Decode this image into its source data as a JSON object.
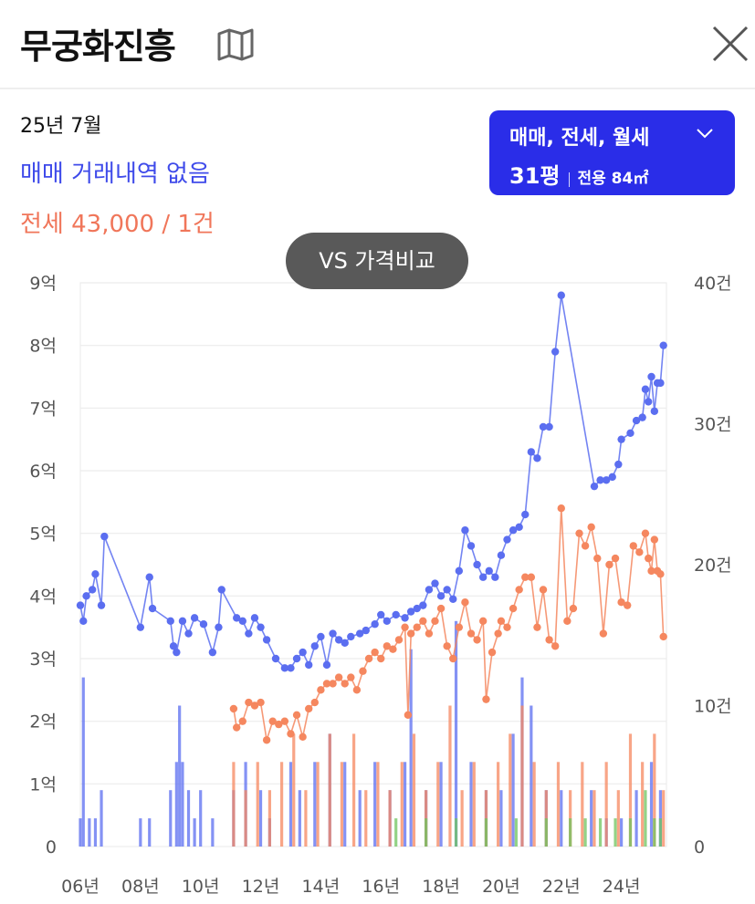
{
  "header": {
    "title": "무궁화진흥"
  },
  "summary": {
    "date": "25년 7월",
    "sale_text": "매매 거래내역 없음",
    "jeonse_text": "전세 43,000 / 1건"
  },
  "filter": {
    "types_label": "매매, 전세, 월세",
    "pyeong_label": "31평",
    "area_label": "전용 84㎡"
  },
  "compare_button": {
    "label": "VS 가격비교"
  },
  "colors": {
    "sale": "#5b6ef0",
    "jeonse": "#f5875f",
    "monthly": "#6fc45e",
    "accent": "#2a2de8"
  },
  "icons": {
    "map": "map-icon",
    "close": "close-icon",
    "dropdown": "chevron-down-icon"
  },
  "chart_data": {
    "type": "line",
    "x_range": [
      2006,
      2025.5
    ],
    "x_ticks": [
      "06년",
      "08년",
      "10년",
      "12년",
      "14년",
      "16년",
      "18년",
      "20년",
      "22년",
      "24년"
    ],
    "x_tick_years": [
      2006,
      2008,
      2010,
      2012,
      2014,
      2016,
      2018,
      2020,
      2022,
      2024
    ],
    "y_left": {
      "ticks": [
        "0",
        "1억",
        "2억",
        "3억",
        "4억",
        "5억",
        "6억",
        "7억",
        "8억",
        "9억"
      ],
      "range": [
        0,
        9
      ]
    },
    "y_right": {
      "ticks": [
        "0",
        "10건",
        "20건",
        "30건",
        "40건"
      ],
      "range": [
        0,
        40
      ]
    },
    "grid": true,
    "series": [
      {
        "name": "매매",
        "color": "#5b6ef0",
        "points": [
          [
            2006.0,
            3.85
          ],
          [
            2006.1,
            3.6
          ],
          [
            2006.2,
            4.0
          ],
          [
            2006.4,
            4.1
          ],
          [
            2006.5,
            4.35
          ],
          [
            2006.7,
            3.85
          ],
          [
            2006.8,
            4.95
          ],
          [
            2008.0,
            3.5
          ],
          [
            2008.3,
            4.3
          ],
          [
            2008.4,
            3.8
          ],
          [
            2009.0,
            3.6
          ],
          [
            2009.1,
            3.2
          ],
          [
            2009.2,
            3.1
          ],
          [
            2009.4,
            3.6
          ],
          [
            2009.6,
            3.4
          ],
          [
            2009.8,
            3.65
          ],
          [
            2010.1,
            3.55
          ],
          [
            2010.4,
            3.1
          ],
          [
            2010.6,
            3.5
          ],
          [
            2010.7,
            4.1
          ],
          [
            2011.2,
            3.65
          ],
          [
            2011.4,
            3.6
          ],
          [
            2011.6,
            3.4
          ],
          [
            2011.8,
            3.65
          ],
          [
            2012.0,
            3.5
          ],
          [
            2012.2,
            3.3
          ],
          [
            2012.5,
            3.0
          ],
          [
            2012.8,
            2.85
          ],
          [
            2013.0,
            2.85
          ],
          [
            2013.2,
            3.0
          ],
          [
            2013.4,
            3.1
          ],
          [
            2013.6,
            2.9
          ],
          [
            2013.8,
            3.2
          ],
          [
            2014.0,
            3.35
          ],
          [
            2014.2,
            2.9
          ],
          [
            2014.4,
            3.4
          ],
          [
            2014.6,
            3.3
          ],
          [
            2014.8,
            3.25
          ],
          [
            2015.0,
            3.35
          ],
          [
            2015.3,
            3.4
          ],
          [
            2015.5,
            3.45
          ],
          [
            2015.8,
            3.55
          ],
          [
            2016.0,
            3.7
          ],
          [
            2016.2,
            3.6
          ],
          [
            2016.5,
            3.7
          ],
          [
            2016.8,
            3.65
          ],
          [
            2017.0,
            3.75
          ],
          [
            2017.2,
            3.8
          ],
          [
            2017.4,
            3.85
          ],
          [
            2017.6,
            4.1
          ],
          [
            2017.8,
            4.2
          ],
          [
            2018.0,
            4.0
          ],
          [
            2018.2,
            4.1
          ],
          [
            2018.4,
            3.95
          ],
          [
            2018.6,
            4.4
          ],
          [
            2018.8,
            5.05
          ],
          [
            2019.0,
            4.8
          ],
          [
            2019.2,
            4.5
          ],
          [
            2019.4,
            4.3
          ],
          [
            2019.6,
            4.4
          ],
          [
            2019.8,
            4.3
          ],
          [
            2020.0,
            4.65
          ],
          [
            2020.2,
            4.9
          ],
          [
            2020.4,
            5.05
          ],
          [
            2020.6,
            5.1
          ],
          [
            2020.8,
            5.3
          ],
          [
            2021.0,
            6.3
          ],
          [
            2021.2,
            6.2
          ],
          [
            2021.4,
            6.7
          ],
          [
            2021.6,
            6.7
          ],
          [
            2021.8,
            7.9
          ],
          [
            2022.0,
            8.8
          ],
          [
            2023.1,
            5.75
          ],
          [
            2023.3,
            5.85
          ],
          [
            2023.5,
            5.85
          ],
          [
            2023.7,
            5.9
          ],
          [
            2023.9,
            6.1
          ],
          [
            2024.0,
            6.5
          ],
          [
            2024.3,
            6.6
          ],
          [
            2024.5,
            6.8
          ],
          [
            2024.7,
            6.85
          ],
          [
            2024.8,
            7.3
          ],
          [
            2024.9,
            7.1
          ],
          [
            2025.0,
            7.5
          ],
          [
            2025.1,
            6.95
          ],
          [
            2025.2,
            7.4
          ],
          [
            2025.3,
            7.4
          ],
          [
            2025.4,
            8.0
          ]
        ]
      },
      {
        "name": "전세",
        "color": "#f5875f",
        "points": [
          [
            2011.1,
            2.2
          ],
          [
            2011.2,
            1.9
          ],
          [
            2011.4,
            2.0
          ],
          [
            2011.6,
            2.3
          ],
          [
            2011.8,
            2.25
          ],
          [
            2012.0,
            2.3
          ],
          [
            2012.2,
            1.7
          ],
          [
            2012.4,
            2.0
          ],
          [
            2012.6,
            1.95
          ],
          [
            2012.8,
            2.0
          ],
          [
            2013.0,
            1.8
          ],
          [
            2013.2,
            2.1
          ],
          [
            2013.4,
            1.75
          ],
          [
            2013.6,
            2.2
          ],
          [
            2013.8,
            2.3
          ],
          [
            2014.0,
            2.5
          ],
          [
            2014.2,
            2.6
          ],
          [
            2014.4,
            2.6
          ],
          [
            2014.6,
            2.7
          ],
          [
            2014.8,
            2.6
          ],
          [
            2015.0,
            2.7
          ],
          [
            2015.2,
            2.5
          ],
          [
            2015.4,
            2.8
          ],
          [
            2015.6,
            3.0
          ],
          [
            2015.8,
            3.1
          ],
          [
            2016.0,
            3.0
          ],
          [
            2016.2,
            3.2
          ],
          [
            2016.4,
            3.15
          ],
          [
            2016.6,
            3.3
          ],
          [
            2016.8,
            3.5
          ],
          [
            2016.9,
            2.1
          ],
          [
            2017.0,
            3.4
          ],
          [
            2017.2,
            3.5
          ],
          [
            2017.4,
            3.6
          ],
          [
            2017.6,
            3.4
          ],
          [
            2017.8,
            3.6
          ],
          [
            2018.0,
            3.8
          ],
          [
            2018.2,
            3.2
          ],
          [
            2018.4,
            3.0
          ],
          [
            2018.6,
            3.5
          ],
          [
            2018.8,
            3.9
          ],
          [
            2019.0,
            3.4
          ],
          [
            2019.2,
            3.3
          ],
          [
            2019.4,
            3.6
          ],
          [
            2019.5,
            2.35
          ],
          [
            2019.7,
            3.1
          ],
          [
            2019.9,
            3.4
          ],
          [
            2020.0,
            3.6
          ],
          [
            2020.2,
            3.5
          ],
          [
            2020.4,
            3.8
          ],
          [
            2020.6,
            4.1
          ],
          [
            2020.8,
            4.3
          ],
          [
            2021.0,
            4.3
          ],
          [
            2021.2,
            3.5
          ],
          [
            2021.4,
            4.1
          ],
          [
            2021.6,
            3.3
          ],
          [
            2021.8,
            3.2
          ],
          [
            2022.0,
            5.4
          ],
          [
            2022.2,
            3.6
          ],
          [
            2022.4,
            3.8
          ],
          [
            2022.6,
            5.0
          ],
          [
            2022.8,
            4.8
          ],
          [
            2023.0,
            5.1
          ],
          [
            2023.2,
            4.6
          ],
          [
            2023.4,
            3.4
          ],
          [
            2023.6,
            4.5
          ],
          [
            2023.8,
            4.6
          ],
          [
            2024.0,
            3.9
          ],
          [
            2024.2,
            3.85
          ],
          [
            2024.4,
            4.8
          ],
          [
            2024.6,
            4.7
          ],
          [
            2024.8,
            5.0
          ],
          [
            2024.9,
            4.6
          ],
          [
            2025.0,
            4.4
          ],
          [
            2025.1,
            4.9
          ],
          [
            2025.2,
            4.4
          ],
          [
            2025.3,
            4.35
          ],
          [
            2025.4,
            3.35
          ]
        ]
      }
    ],
    "volume_series": [
      {
        "name": "매매 거래량",
        "color": "#5b6ef0",
        "bars": [
          [
            2006.0,
            2
          ],
          [
            2006.1,
            12
          ],
          [
            2006.3,
            2
          ],
          [
            2006.5,
            2
          ],
          [
            2006.7,
            4
          ],
          [
            2008.0,
            2
          ],
          [
            2008.3,
            2
          ],
          [
            2009.0,
            4
          ],
          [
            2009.2,
            6
          ],
          [
            2009.3,
            10
          ],
          [
            2009.4,
            6
          ],
          [
            2009.6,
            4
          ],
          [
            2009.8,
            2
          ],
          [
            2010.0,
            4
          ],
          [
            2010.4,
            2
          ],
          [
            2011.1,
            4
          ],
          [
            2011.5,
            6
          ],
          [
            2012.0,
            4
          ],
          [
            2012.3,
            2
          ],
          [
            2013.0,
            6
          ],
          [
            2013.3,
            4
          ],
          [
            2013.8,
            6
          ],
          [
            2014.3,
            8
          ],
          [
            2014.8,
            6
          ],
          [
            2015.3,
            4
          ],
          [
            2015.8,
            6
          ],
          [
            2016.3,
            4
          ],
          [
            2016.8,
            6
          ],
          [
            2017.0,
            14
          ],
          [
            2017.5,
            4
          ],
          [
            2018.0,
            6
          ],
          [
            2018.5,
            16
          ],
          [
            2019.0,
            6
          ],
          [
            2019.5,
            4
          ],
          [
            2020.0,
            4
          ],
          [
            2020.4,
            8
          ],
          [
            2020.7,
            12
          ],
          [
            2021.0,
            10
          ],
          [
            2021.5,
            4
          ],
          [
            2022.0,
            4
          ],
          [
            2023.0,
            4
          ],
          [
            2023.5,
            2
          ],
          [
            2024.0,
            2
          ],
          [
            2024.5,
            4
          ],
          [
            2025.0,
            6
          ],
          [
            2025.3,
            4
          ]
        ]
      },
      {
        "name": "전세 거래량",
        "color": "#f5875f",
        "bars": [
          [
            2011.1,
            6
          ],
          [
            2011.5,
            4
          ],
          [
            2011.9,
            6
          ],
          [
            2012.3,
            4
          ],
          [
            2012.7,
            6
          ],
          [
            2013.1,
            8
          ],
          [
            2013.5,
            4
          ],
          [
            2013.9,
            6
          ],
          [
            2014.3,
            8
          ],
          [
            2014.7,
            6
          ],
          [
            2015.1,
            8
          ],
          [
            2015.5,
            4
          ],
          [
            2015.9,
            6
          ],
          [
            2016.3,
            4
          ],
          [
            2016.7,
            6
          ],
          [
            2017.1,
            8
          ],
          [
            2017.5,
            4
          ],
          [
            2017.9,
            6
          ],
          [
            2018.3,
            10
          ],
          [
            2018.7,
            4
          ],
          [
            2019.1,
            6
          ],
          [
            2019.5,
            4
          ],
          [
            2019.9,
            6
          ],
          [
            2020.3,
            8
          ],
          [
            2020.7,
            10
          ],
          [
            2021.1,
            6
          ],
          [
            2021.5,
            4
          ],
          [
            2021.9,
            6
          ],
          [
            2022.3,
            4
          ],
          [
            2022.7,
            6
          ],
          [
            2023.1,
            4
          ],
          [
            2023.5,
            6
          ],
          [
            2023.9,
            4
          ],
          [
            2024.3,
            8
          ],
          [
            2024.7,
            6
          ],
          [
            2025.1,
            8
          ],
          [
            2025.4,
            4
          ]
        ]
      },
      {
        "name": "월세 거래량",
        "color": "#6fc45e",
        "bars": [
          [
            2016.5,
            2
          ],
          [
            2017.5,
            2
          ],
          [
            2018.5,
            2
          ],
          [
            2019.5,
            2
          ],
          [
            2020.5,
            2
          ],
          [
            2021.5,
            2
          ],
          [
            2022.3,
            2
          ],
          [
            2022.8,
            2
          ],
          [
            2023.3,
            2
          ],
          [
            2023.8,
            2
          ],
          [
            2024.3,
            2
          ],
          [
            2024.8,
            4
          ],
          [
            2025.1,
            2
          ],
          [
            2025.3,
            2
          ]
        ]
      }
    ]
  }
}
